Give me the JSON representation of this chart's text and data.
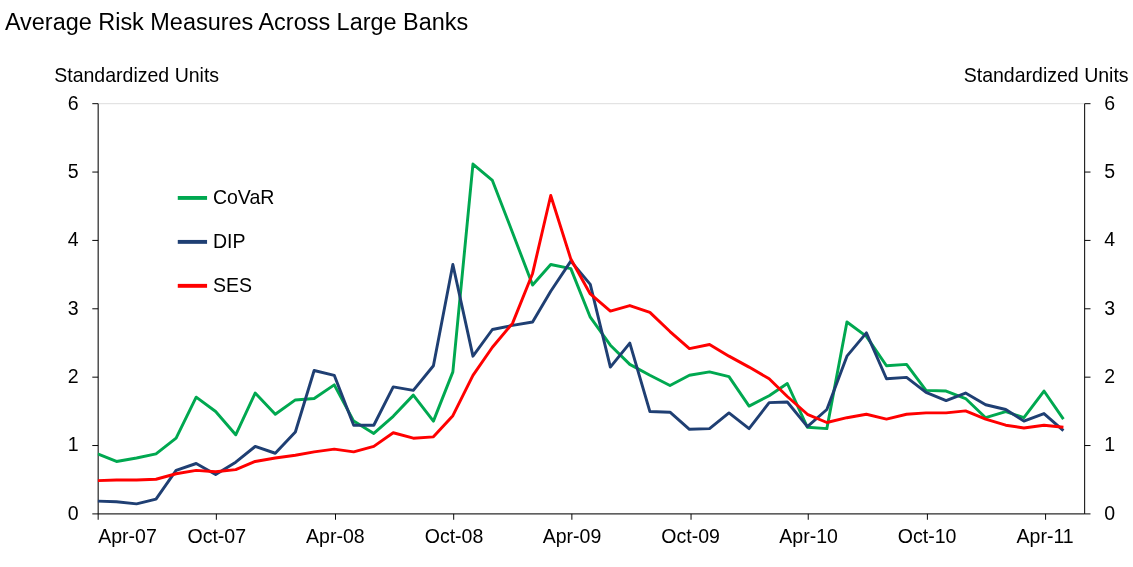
{
  "chart_data": {
    "type": "line",
    "title": "Average Risk Measures Across Large Banks",
    "ylabel": "Standardized Units",
    "y2label": "Standardized Units",
    "x": [
      "2007-04-01",
      "2007-04-30",
      "2007-05-31",
      "2007-06-30",
      "2007-07-31",
      "2007-08-31",
      "2007-09-30",
      "2007-10-31",
      "2007-11-30",
      "2007-12-31",
      "2008-01-31",
      "2008-02-29",
      "2008-03-31",
      "2008-04-30",
      "2008-05-31",
      "2008-06-30",
      "2008-07-31",
      "2008-08-31",
      "2008-09-30",
      "2008-10-31",
      "2008-11-30",
      "2008-12-31",
      "2009-01-31",
      "2009-02-28",
      "2009-03-31",
      "2009-04-30",
      "2009-05-31",
      "2009-06-30",
      "2009-07-31",
      "2009-08-31",
      "2009-09-30",
      "2009-10-31",
      "2009-11-30",
      "2009-12-31",
      "2010-01-31",
      "2010-02-28",
      "2010-03-31",
      "2010-04-30",
      "2010-05-31",
      "2010-06-30",
      "2010-07-31",
      "2010-08-31",
      "2010-09-30",
      "2010-10-31",
      "2010-11-30",
      "2010-12-31",
      "2011-01-31",
      "2011-02-28",
      "2011-03-31",
      "2011-04-30"
    ],
    "series": [
      {
        "name": "CoVaR",
        "color": "#00a850",
        "values": [
          0.87,
          0.76,
          0.81,
          0.87,
          1.1,
          1.7,
          1.49,
          1.15,
          1.76,
          1.45,
          1.66,
          1.68,
          1.88,
          1.35,
          1.17,
          1.42,
          1.73,
          1.35,
          2.07,
          5.11,
          4.87,
          4.11,
          3.34,
          3.64,
          3.58,
          2.87,
          2.46,
          2.18,
          2.02,
          1.87,
          2.02,
          2.07,
          2.0,
          1.57,
          1.72,
          1.9,
          1.26,
          1.24,
          2.8,
          2.59,
          2.16,
          2.18,
          1.8,
          1.79,
          1.68,
          1.4,
          1.49,
          1.4,
          1.79,
          1.38
        ]
      },
      {
        "name": "DIP",
        "color": "#1f3f73",
        "values": [
          0.18,
          0.17,
          0.14,
          0.21,
          0.63,
          0.73,
          0.57,
          0.75,
          0.98,
          0.88,
          1.19,
          2.09,
          2.02,
          1.29,
          1.29,
          1.85,
          1.8,
          2.16,
          3.64,
          2.3,
          2.69,
          2.75,
          2.8,
          3.25,
          3.69,
          3.35,
          2.14,
          2.49,
          1.49,
          1.48,
          1.23,
          1.24,
          1.47,
          1.24,
          1.62,
          1.63,
          1.27,
          1.52,
          2.3,
          2.64,
          1.97,
          1.99,
          1.77,
          1.65,
          1.76,
          1.59,
          1.52,
          1.35,
          1.46,
          1.21
        ]
      },
      {
        "name": "SES",
        "color": "#ff0000",
        "values": [
          0.48,
          0.49,
          0.49,
          0.5,
          0.58,
          0.63,
          0.61,
          0.64,
          0.76,
          0.81,
          0.85,
          0.9,
          0.94,
          0.9,
          0.98,
          1.18,
          1.1,
          1.12,
          1.43,
          2.02,
          2.43,
          2.78,
          3.51,
          4.65,
          3.72,
          3.21,
          2.96,
          3.04,
          2.94,
          2.66,
          2.41,
          2.47,
          2.3,
          2.14,
          1.97,
          1.71,
          1.45,
          1.33,
          1.4,
          1.45,
          1.38,
          1.45,
          1.47,
          1.47,
          1.5,
          1.38,
          1.29,
          1.25,
          1.29,
          1.26
        ]
      }
    ],
    "xlim": [
      "2007-04-01",
      "2011-06-01"
    ],
    "xticks": [
      {
        "value": "2007-04-01",
        "label": "Apr-07"
      },
      {
        "value": "2007-10-01",
        "label": "Oct-07"
      },
      {
        "value": "2008-04-01",
        "label": "Apr-08"
      },
      {
        "value": "2008-10-01",
        "label": "Oct-08"
      },
      {
        "value": "2009-04-01",
        "label": "Apr-09"
      },
      {
        "value": "2009-10-01",
        "label": "Oct-09"
      },
      {
        "value": "2010-04-01",
        "label": "Apr-10"
      },
      {
        "value": "2010-10-01",
        "label": "Oct-10"
      },
      {
        "value": "2011-04-01",
        "label": "Apr-11"
      }
    ],
    "ylim": [
      0,
      6
    ],
    "yticks": [
      0,
      1,
      2,
      3,
      4,
      5,
      6
    ],
    "y2lim": [
      0,
      6
    ],
    "y2ticks": [
      0,
      1,
      2,
      3,
      4,
      5,
      6
    ],
    "grid": false,
    "legend": "top left",
    "marker": "none",
    "line_style": "solid"
  }
}
